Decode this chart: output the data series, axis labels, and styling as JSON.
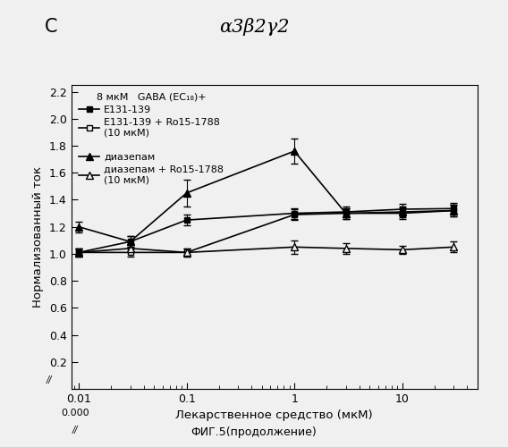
{
  "title": "α3β2γ2",
  "panel_label": "C",
  "xlabel": "Лекарственное средство (мкМ)",
  "ylabel": "Нормализованный ток",
  "footer": "ФИГ.5(продолжение)",
  "legend_header": "8 мкМ   GABA (EC₁₈)+",
  "legend_lines": [
    "E131-139",
    "E131-139 + Ro15-1788\n(10 мкМ)",
    "диазепам",
    "диазепам + Ro15-1788\n(10 мкМ)"
  ],
  "x_data": [
    0.01,
    0.03,
    0.1,
    1.0,
    3.0,
    10.0,
    30.0
  ],
  "series1_y": [
    1.01,
    1.09,
    1.25,
    1.3,
    1.31,
    1.33,
    1.335
  ],
  "series1_yerr": [
    0.03,
    0.04,
    0.04,
    0.04,
    0.04,
    0.04,
    0.04
  ],
  "series2_y": [
    1.01,
    1.01,
    1.01,
    1.29,
    1.3,
    1.3,
    1.32
  ],
  "series2_yerr": [
    0.03,
    0.03,
    0.03,
    0.04,
    0.04,
    0.04,
    0.04
  ],
  "series3_y": [
    1.2,
    1.09,
    1.45,
    1.76,
    1.3,
    1.31,
    1.32
  ],
  "series3_yerr": [
    0.04,
    0.04,
    0.1,
    0.09,
    0.04,
    0.04,
    0.04
  ],
  "series4_y": [
    1.01,
    1.04,
    1.01,
    1.05,
    1.04,
    1.03,
    1.05
  ],
  "series4_yerr": [
    0.03,
    0.03,
    0.03,
    0.05,
    0.04,
    0.03,
    0.04
  ],
  "ylim": [
    0.0,
    2.25
  ],
  "yticks": [
    0.0,
    0.2,
    0.4,
    0.6,
    0.8,
    1.0,
    1.2,
    1.4,
    1.6,
    1.8,
    2.0,
    2.2
  ],
  "background_color": "#f0f0f0",
  "line_color": "#000000"
}
